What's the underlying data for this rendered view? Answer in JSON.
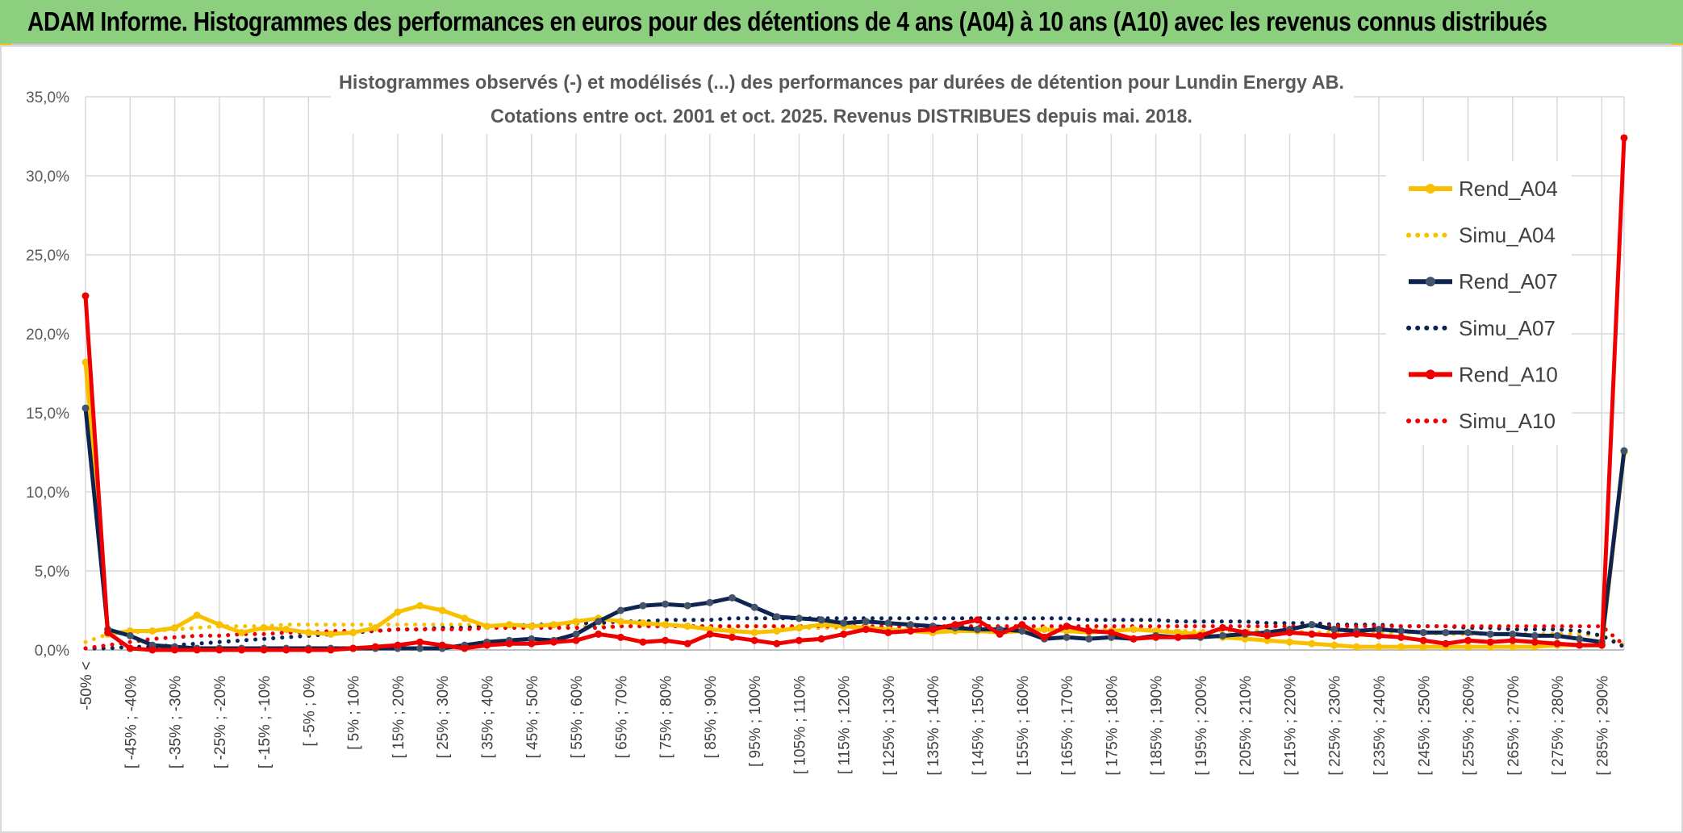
{
  "header": {
    "title": "ADAM Informe. Histogrammes des performances en euros pour des détentions de 4 ans (A04) à 10 ans (A10) avec les revenus connus distribués"
  },
  "chart_data": {
    "type": "line",
    "title_line1": "Histogrammes observés (-) et modélisés (...) des performances par durées de détention pour Lundin Energy AB.",
    "title_line2": "Cotations entre oct. 2001 et oct. 2025. Revenus DISTRIBUES depuis mai. 2018.",
    "ylim": [
      0,
      35
    ],
    "yticks": [
      "0,0%",
      "5,0%",
      "10,0%",
      "15,0%",
      "20,0%",
      "25,0%",
      "30,0%",
      "35,0%"
    ],
    "grid": true,
    "legend_position": "right",
    "n_points": 70,
    "xtick_labels": [
      "-50% <",
      "[ -45% ; -40%",
      "[ -35% ; -30%",
      "[ -25% ; -20%",
      "[ -15% ; -10%",
      "[ -5% ; 0%",
      "[ 5% ; 10%",
      "[ 15% ; 20%",
      "[ 25% ; 30%",
      "[ 35% ; 40%",
      "[ 45% ; 50%",
      "[ 55% ; 60%",
      "[ 65% ; 70%",
      "[ 75% ; 80%",
      "[ 85% ; 90%",
      "[ 95% ; 100%",
      "[ 105% ; 110%",
      "[ 115% ; 120%",
      "[ 125% ; 130%",
      "[ 135% ; 140%",
      "[ 145% ; 150%",
      "[ 155% ; 160%",
      "[ 165% ; 170%",
      "[ 175% ; 180%",
      "[ 185% ; 190%",
      "[ 195% ; 200%",
      "[ 205% ; 210%",
      "[ 215% ; 220%",
      "[ 225% ; 230%",
      "[ 235% ; 240%",
      "[ 245% ; 250%",
      "[ 255% ; 260%",
      "[ 265% ; 270%",
      "[ 275% ; 280%",
      "[ 285% ; 290%"
    ],
    "series": [
      {
        "name": "Rend_A04",
        "style": "solid",
        "color": "#f9c000",
        "values": [
          18.2,
          1.0,
          1.2,
          1.2,
          1.4,
          2.2,
          1.6,
          1.1,
          1.4,
          1.3,
          1.1,
          1.0,
          1.1,
          1.4,
          2.4,
          2.8,
          2.5,
          2.0,
          1.5,
          1.6,
          1.5,
          1.6,
          1.8,
          2.0,
          1.8,
          1.7,
          1.6,
          1.5,
          1.3,
          1.2,
          1.1,
          1.2,
          1.4,
          1.6,
          1.5,
          1.4,
          1.3,
          1.2,
          1.1,
          1.2,
          1.2,
          1.1,
          1.2,
          1.3,
          1.2,
          1.1,
          1.2,
          1.3,
          1.2,
          1.1,
          1.0,
          0.8,
          0.7,
          0.6,
          0.5,
          0.4,
          0.3,
          0.2,
          0.2,
          0.2,
          0.2,
          0.2,
          0.2,
          0.2,
          0.2,
          0.2,
          0.3,
          0.3,
          0.3,
          12.5
        ]
      },
      {
        "name": "Simu_A04",
        "style": "dotted",
        "color": "#f9c000",
        "values": [
          0.5,
          1.0,
          1.1,
          1.2,
          1.3,
          1.4,
          1.5,
          1.5,
          1.5,
          1.6,
          1.6,
          1.6,
          1.6,
          1.6,
          1.6,
          1.6,
          1.6,
          1.6,
          1.5,
          1.5,
          1.5,
          1.5,
          1.5,
          1.5,
          1.5,
          1.5,
          1.5,
          1.5,
          1.5,
          1.5,
          1.5,
          1.5,
          1.4,
          1.4,
          1.4,
          1.4,
          1.4,
          1.4,
          1.4,
          1.4,
          1.4,
          1.3,
          1.3,
          1.3,
          1.3,
          1.3,
          1.3,
          1.3,
          1.3,
          1.2,
          1.2,
          1.2,
          1.2,
          1.2,
          1.2,
          1.1,
          1.1,
          1.1,
          1.1,
          1.1,
          1.1,
          1.0,
          1.0,
          1.0,
          1.0,
          1.0,
          1.0,
          1.0,
          0.9,
          0.3
        ]
      },
      {
        "name": "Rend_A07",
        "style": "solid",
        "color": "#0d2450",
        "values": [
          15.3,
          1.3,
          0.9,
          0.3,
          0.2,
          0.1,
          0.1,
          0.1,
          0.1,
          0.1,
          0.1,
          0.1,
          0.1,
          0.1,
          0.1,
          0.1,
          0.1,
          0.3,
          0.5,
          0.6,
          0.7,
          0.6,
          1.0,
          1.8,
          2.5,
          2.8,
          2.9,
          2.8,
          3.0,
          3.3,
          2.7,
          2.1,
          2.0,
          1.9,
          1.7,
          1.8,
          1.7,
          1.6,
          1.5,
          1.4,
          1.3,
          1.3,
          1.2,
          0.7,
          0.8,
          0.7,
          0.8,
          0.7,
          0.9,
          0.8,
          0.8,
          0.9,
          1.0,
          1.1,
          1.3,
          1.6,
          1.3,
          1.2,
          1.3,
          1.2,
          1.1,
          1.1,
          1.1,
          1.0,
          1.0,
          0.9,
          0.9,
          0.7,
          0.5,
          12.6
        ]
      },
      {
        "name": "Simu_A07",
        "style": "dotted",
        "color": "#0d2450",
        "values": [
          0.1,
          0.1,
          0.2,
          0.2,
          0.3,
          0.4,
          0.5,
          0.6,
          0.7,
          0.8,
          0.9,
          1.0,
          1.1,
          1.2,
          1.3,
          1.3,
          1.4,
          1.4,
          1.5,
          1.5,
          1.6,
          1.6,
          1.7,
          1.7,
          1.8,
          1.8,
          1.9,
          1.9,
          1.9,
          2.0,
          2.0,
          2.0,
          2.0,
          2.0,
          2.0,
          2.0,
          2.0,
          2.0,
          2.0,
          2.0,
          2.0,
          2.0,
          2.0,
          2.0,
          2.0,
          1.9,
          1.9,
          1.9,
          1.9,
          1.8,
          1.8,
          1.8,
          1.8,
          1.7,
          1.7,
          1.7,
          1.6,
          1.6,
          1.6,
          1.5,
          1.5,
          1.5,
          1.4,
          1.4,
          1.3,
          1.3,
          1.3,
          1.2,
          0.9,
          0.2
        ]
      },
      {
        "name": "Rend_A10",
        "style": "solid",
        "color": "#ee0000",
        "values": [
          22.4,
          1.1,
          0.1,
          0.0,
          0.0,
          0.0,
          0.0,
          0.0,
          0.0,
          0.0,
          0.0,
          0.0,
          0.1,
          0.2,
          0.3,
          0.5,
          0.3,
          0.1,
          0.3,
          0.4,
          0.4,
          0.5,
          0.6,
          1.0,
          0.8,
          0.5,
          0.6,
          0.4,
          1.0,
          0.8,
          0.6,
          0.4,
          0.6,
          0.7,
          1.0,
          1.3,
          1.1,
          1.2,
          1.3,
          1.6,
          1.9,
          1.0,
          1.6,
          0.8,
          1.5,
          1.2,
          1.1,
          0.7,
          0.8,
          0.8,
          0.9,
          1.4,
          1.1,
          0.9,
          1.1,
          1.0,
          0.9,
          1.0,
          0.9,
          0.8,
          0.6,
          0.4,
          0.6,
          0.5,
          0.6,
          0.5,
          0.4,
          0.3,
          0.3,
          32.4
        ]
      },
      {
        "name": "Simu_A10",
        "style": "dotted",
        "color": "#ee0000",
        "values": [
          0.1,
          0.3,
          0.5,
          0.7,
          0.8,
          0.9,
          0.9,
          1.0,
          1.0,
          1.1,
          1.1,
          1.2,
          1.2,
          1.2,
          1.3,
          1.3,
          1.3,
          1.3,
          1.4,
          1.4,
          1.4,
          1.4,
          1.4,
          1.4,
          1.5,
          1.5,
          1.5,
          1.5,
          1.5,
          1.5,
          1.5,
          1.5,
          1.5,
          1.5,
          1.5,
          1.5,
          1.5,
          1.5,
          1.5,
          1.5,
          1.5,
          1.5,
          1.5,
          1.5,
          1.5,
          1.5,
          1.5,
          1.5,
          1.5,
          1.5,
          1.5,
          1.5,
          1.5,
          1.5,
          1.5,
          1.5,
          1.5,
          1.5,
          1.5,
          1.5,
          1.5,
          1.5,
          1.5,
          1.5,
          1.5,
          1.5,
          1.5,
          1.5,
          1.5,
          0.3
        ]
      }
    ]
  }
}
